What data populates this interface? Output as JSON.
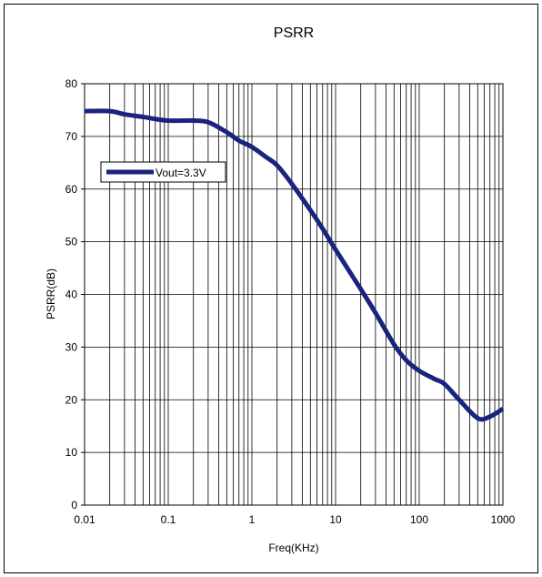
{
  "chart_data": {
    "type": "line",
    "title": "PSRR",
    "xlabel": "Freq(KHz)",
    "ylabel": "PSRR(dB)",
    "x_scale": "log",
    "xlim": [
      0.01,
      1000
    ],
    "ylim": [
      0,
      80
    ],
    "x_tick_labels": [
      "0.01",
      "0.1",
      "1",
      "10",
      "100",
      "1000"
    ],
    "y_tick_labels": [
      "0",
      "10",
      "20",
      "30",
      "40",
      "50",
      "60",
      "70",
      "80"
    ],
    "grid": true,
    "legend_position": "upper-left",
    "series": [
      {
        "name": "Vout=3.3V",
        "color": "#1a237e",
        "x": [
          0.01,
          0.02,
          0.03,
          0.05,
          0.07,
          0.1,
          0.15,
          0.2,
          0.3,
          0.5,
          0.7,
          1,
          1.5,
          2,
          3,
          5,
          7,
          10,
          20,
          30,
          50,
          70,
          100,
          150,
          200,
          300,
          500,
          700,
          1000
        ],
        "y": [
          74.8,
          74.8,
          74.2,
          73.7,
          73.3,
          73.0,
          73.0,
          73.0,
          72.7,
          70.8,
          69.2,
          68.0,
          66.0,
          64.5,
          61.0,
          56.0,
          52.5,
          48.5,
          41.0,
          36.5,
          30.5,
          27.5,
          25.5,
          24.0,
          23.0,
          20.0,
          16.5,
          16.8,
          18.3
        ]
      }
    ]
  }
}
